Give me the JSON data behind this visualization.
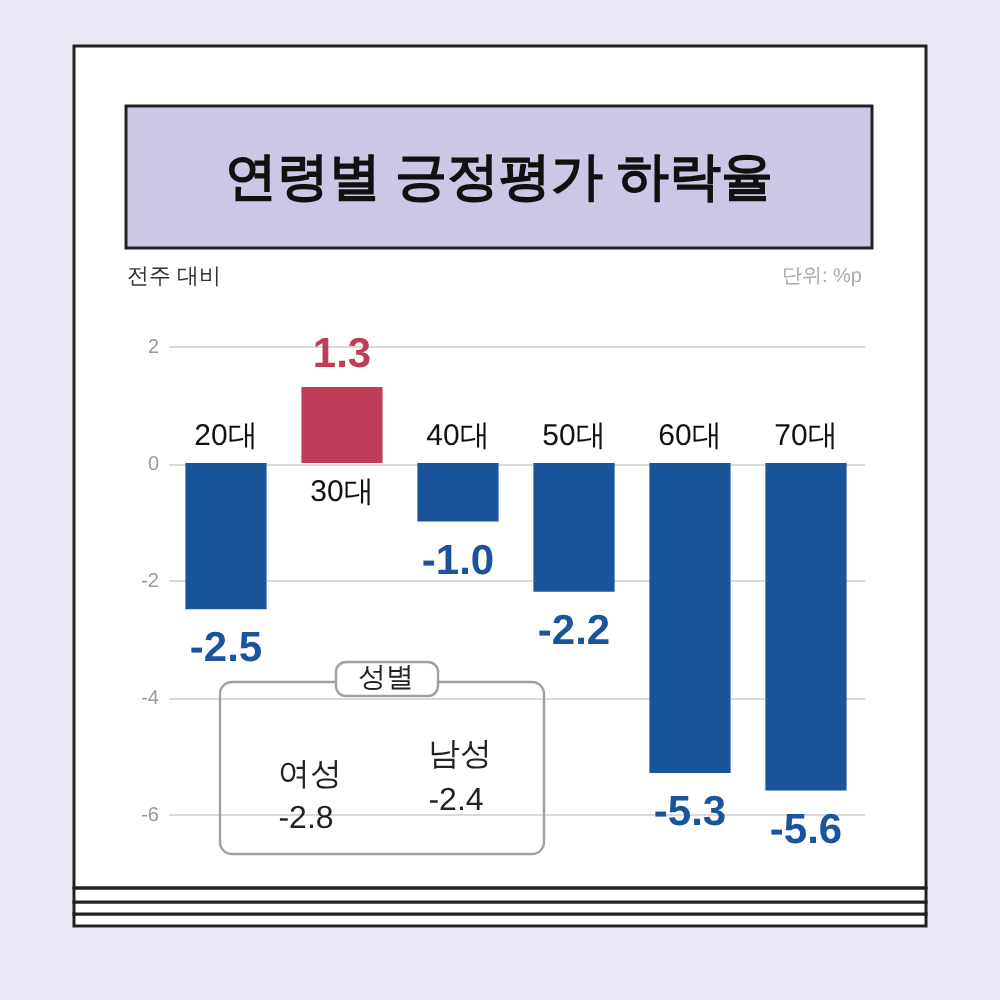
{
  "chart_data": {
    "type": "bar",
    "title": "연령별 긍정평가 하락율",
    "ylabel": "전주 대비",
    "categories": [
      "20대",
      "30대",
      "40대",
      "50대",
      "60대",
      "70대"
    ],
    "values": [
      -2.5,
      1.3,
      -1.0,
      -2.2,
      -5.3,
      -5.6
    ],
    "colors": [
      "#1a549b",
      "#be3d58",
      "#1a549b",
      "#1a549b",
      "#1a549b",
      "#1a549b"
    ],
    "value_labels": [
      "-2.5",
      "1.3",
      "-1.0",
      "-2.2",
      "-5.3",
      "-5.6"
    ],
    "ylim": [
      -6,
      2
    ],
    "yticks": [
      2,
      0,
      -2,
      -4,
      -6
    ],
    "grid": "y",
    "annotations": [
      "단위: %p",
      "성별",
      "여성",
      "-2.8",
      "남성",
      "-2.4"
    ]
  }
}
